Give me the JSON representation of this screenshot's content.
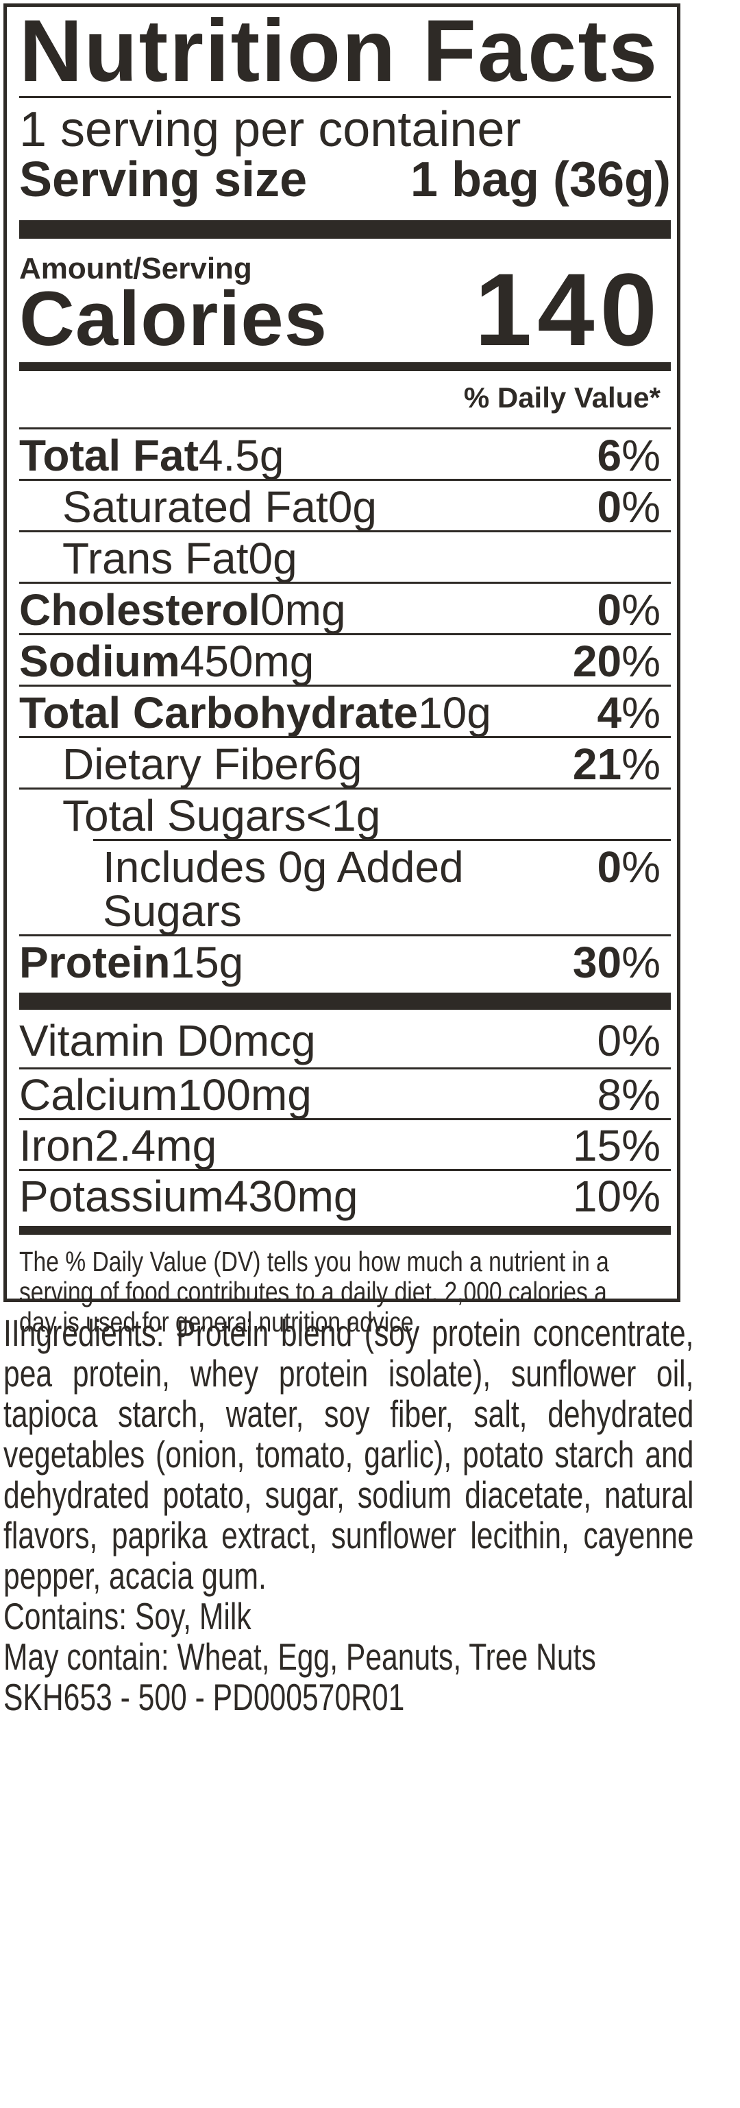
{
  "colors": {
    "ink": "#2e2a26",
    "background": "#ffffff"
  },
  "label": {
    "title": "Nutrition Facts",
    "servings_per_container": "1 serving per container",
    "serving_size": {
      "label": "Serving size",
      "value": "1 bag (36g)"
    },
    "amount_per_serving": "Amount/Serving",
    "calories": {
      "label": "Calories",
      "value": "140"
    },
    "daily_value_header": "% Daily Value*",
    "rows": [
      {
        "name": "Total Fat",
        "amount": "4.5g",
        "dv": "6",
        "pct": "%"
      },
      {
        "name": "Saturated Fat",
        "amount": "0g",
        "dv": "0",
        "pct": "%"
      },
      {
        "name": "Trans Fat",
        "amount": "0g",
        "dv": "",
        "pct": ""
      },
      {
        "name": "Cholesterol",
        "amount": "0mg",
        "dv": "0",
        "pct": "%"
      },
      {
        "name": "Sodium",
        "amount": "450mg",
        "dv": "20",
        "pct": "%"
      },
      {
        "name": "Total Carbohydrate",
        "amount": "10g",
        "dv": "4",
        "pct": "%"
      },
      {
        "name": "Dietary Fiber",
        "amount": "6g",
        "dv": "21",
        "pct": "%"
      },
      {
        "name": "Total Sugars",
        "amount": "<1g",
        "dv": "",
        "pct": ""
      },
      {
        "name": "Includes 0g Added Sugars",
        "amount": "",
        "dv": "0",
        "pct": "%"
      },
      {
        "name": "Protein",
        "amount": "15g",
        "dv": "30",
        "pct": "%"
      }
    ],
    "micronutrients": [
      {
        "name": "Vitamin D",
        "amount": "0mcg",
        "dv": "0",
        "pct": "%"
      },
      {
        "name": "Calcium",
        "amount": "100mg",
        "dv": "8",
        "pct": "%"
      },
      {
        "name": "Iron",
        "amount": "2.4mg",
        "dv": "15",
        "pct": "%"
      },
      {
        "name": "Potassium",
        "amount": "430mg",
        "dv": "10",
        "pct": "%"
      }
    ],
    "footnote_lines": [
      "The % Daily Value (DV) tells you how much a nutrient in a",
      "serving of food contributes to a daily diet. 2,000 calories a",
      "day is used for general nutrition advice."
    ]
  },
  "ingredients": {
    "justified_lines": [
      "IIngredients: Protein blend (soy protein concentrate,",
      "pea protein, whey protein isolate), sunflower oil,",
      "tapioca starch, water, soy fiber, salt, dehydrated",
      "vegetables (onion, tomato, garlic), potato starch and",
      "dehydrated potato, sugar, sodium diacetate, natural",
      "flavors, paprika extract, sunflower lecithin, cayenne"
    ],
    "plain_lines": [
      "pepper, acacia gum.",
      "Contains: Soy, Milk",
      "May contain: Wheat, Egg, Peanuts, Tree Nuts",
      "SKH653 - 500 - PD000570R01"
    ]
  }
}
